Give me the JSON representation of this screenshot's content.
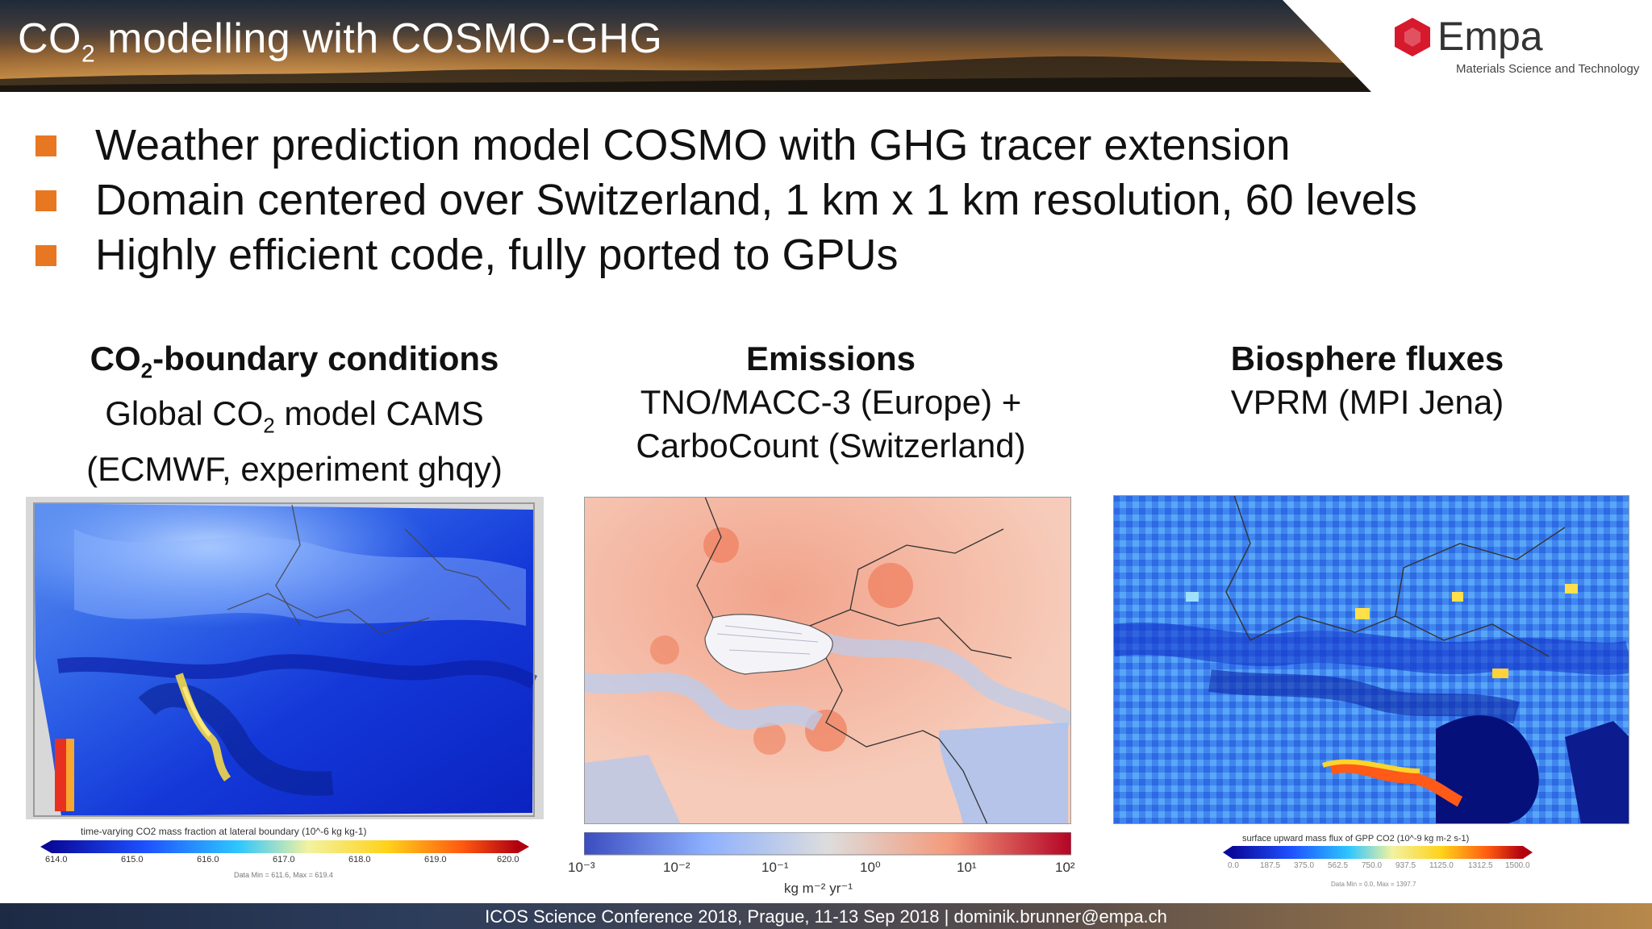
{
  "header": {
    "title_pre": "CO",
    "title_sub": "2",
    "title_post": " modelling with COSMO-GHG"
  },
  "logo": {
    "brand": "Empa",
    "tagline": "Materials Science and Technology"
  },
  "bullets": [
    "Weather prediction model COSMO with GHG tracer extension",
    "Domain centered over Switzerland, 1 km x 1 km resolution, 60 levels",
    "Highly efficient code, fully ported to GPUs"
  ],
  "columns": {
    "boundary": {
      "heading_pre": "CO",
      "heading_sub": "2",
      "heading_post": "-boundary conditions",
      "line1_pre": "Global CO",
      "line1_sub": "2",
      "line1_post": " model CAMS",
      "line2": "(ECMWF, experiment ghqy)"
    },
    "emissions": {
      "heading": "Emissions",
      "line1": "TNO/MACC-3 (Europe) +",
      "line2": "CarboCount (Switzerland)"
    },
    "biosphere": {
      "heading": "Biosphere fluxes",
      "line1": "VPRM (MPI Jena)"
    }
  },
  "maps": {
    "boundary": {
      "colorbar_title": "time-varying CO2 mass fraction at lateral boundary (10^-6 kg kg-1)",
      "ticks": [
        "614.0",
        "615.0",
        "616.0",
        "617.0",
        "618.0",
        "619.0",
        "620.0"
      ],
      "stats": "Data Min = 611.6, Max = 619.4"
    },
    "emissions": {
      "ticks": [
        "10⁻³",
        "10⁻²",
        "10⁻¹",
        "10⁰",
        "10¹",
        "10²"
      ],
      "unit": "kg m⁻² yr⁻¹"
    },
    "biosphere": {
      "colorbar_title": "surface upward mass flux of GPP CO2 (10^-9 kg m-2 s-1)",
      "ticks": [
        "0.0",
        "187.5",
        "375.0",
        "562.5",
        "750.0",
        "937.5",
        "1125.0",
        "1312.5",
        "1500.0"
      ],
      "stats": "Data Min = 0.0, Max = 1397.7"
    }
  },
  "footer": {
    "text": "ICOS Science Conference 2018,  Prague, 11-13 Sep 2018 | dominik.brunner@empa.ch"
  },
  "colors": {
    "accent": "#e87722",
    "logo_red": "#d7192d"
  }
}
